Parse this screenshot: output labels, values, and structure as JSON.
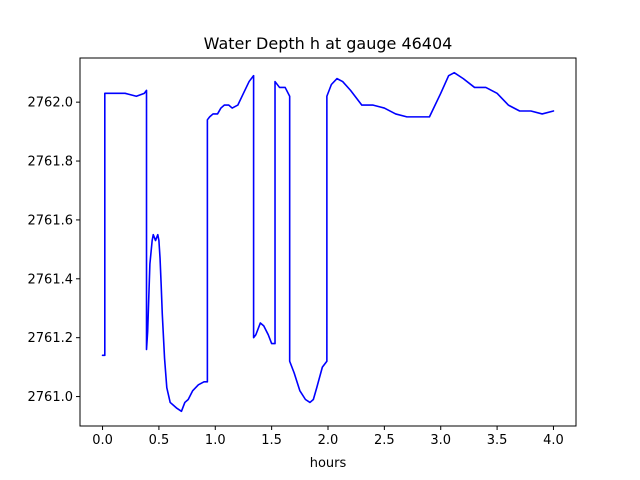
{
  "chart_data": {
    "type": "line",
    "title": "Water Depth h at gauge 46404",
    "xlabel": "hours",
    "ylabel": "",
    "xlim": [
      -0.2,
      4.2
    ],
    "ylim": [
      2760.9,
      2762.15
    ],
    "xticks": [
      0.0,
      0.5,
      1.0,
      1.5,
      2.0,
      2.5,
      3.0,
      3.5,
      4.0
    ],
    "xtick_labels": [
      "0.0",
      "0.5",
      "1.0",
      "1.5",
      "2.0",
      "2.5",
      "3.0",
      "3.5",
      "4.0"
    ],
    "yticks": [
      2761.0,
      2761.2,
      2761.4,
      2761.6,
      2761.8,
      2762.0
    ],
    "ytick_labels": [
      "2761.0",
      "2761.2",
      "2761.4",
      "2761.6",
      "2761.8",
      "2762.0"
    ],
    "grid": false,
    "series": [
      {
        "color": "#0000ff",
        "x": [
          0.0,
          0.02,
          0.02,
          0.1,
          0.2,
          0.3,
          0.37,
          0.39,
          0.39,
          0.4,
          0.42,
          0.44,
          0.45,
          0.46,
          0.47,
          0.48,
          0.49,
          0.5,
          0.51,
          0.52,
          0.53,
          0.55,
          0.57,
          0.6,
          0.63,
          0.66,
          0.7,
          0.73,
          0.76,
          0.8,
          0.85,
          0.9,
          0.93,
          0.93,
          0.95,
          0.98,
          1.02,
          1.05,
          1.08,
          1.12,
          1.15,
          1.2,
          1.25,
          1.3,
          1.34,
          1.34,
          1.36,
          1.4,
          1.43,
          1.47,
          1.5,
          1.53,
          1.53,
          1.57,
          1.62,
          1.66,
          1.66,
          1.7,
          1.75,
          1.8,
          1.84,
          1.87,
          1.9,
          1.95,
          1.99,
          1.99,
          2.03,
          2.08,
          2.13,
          2.2,
          2.3,
          2.4,
          2.5,
          2.6,
          2.7,
          2.8,
          2.9,
          3.0,
          3.07,
          3.12,
          3.2,
          3.3,
          3.4,
          3.5,
          3.6,
          3.7,
          3.8,
          3.9,
          4.0
        ],
        "y": [
          2761.14,
          2761.14,
          2762.03,
          2762.03,
          2762.03,
          2762.02,
          2762.03,
          2762.04,
          2761.16,
          2761.22,
          2761.45,
          2761.53,
          2761.55,
          2761.54,
          2761.53,
          2761.54,
          2761.55,
          2761.53,
          2761.47,
          2761.38,
          2761.28,
          2761.13,
          2761.03,
          2760.98,
          2760.97,
          2760.96,
          2760.95,
          2760.98,
          2760.99,
          2761.02,
          2761.04,
          2761.05,
          2761.05,
          2761.94,
          2761.95,
          2761.96,
          2761.96,
          2761.98,
          2761.99,
          2761.99,
          2761.98,
          2761.99,
          2762.03,
          2762.07,
          2762.09,
          2761.2,
          2761.21,
          2761.25,
          2761.24,
          2761.21,
          2761.18,
          2761.18,
          2762.07,
          2762.05,
          2762.05,
          2762.02,
          2761.12,
          2761.08,
          2761.02,
          2760.99,
          2760.98,
          2760.99,
          2761.03,
          2761.1,
          2761.12,
          2762.02,
          2762.06,
          2762.08,
          2762.07,
          2762.04,
          2761.99,
          2761.99,
          2761.98,
          2761.96,
          2761.95,
          2761.95,
          2761.95,
          2762.03,
          2762.09,
          2762.1,
          2762.08,
          2762.05,
          2762.05,
          2762.03,
          2761.99,
          2761.97,
          2761.97,
          2761.96,
          2761.97
        ]
      }
    ]
  }
}
